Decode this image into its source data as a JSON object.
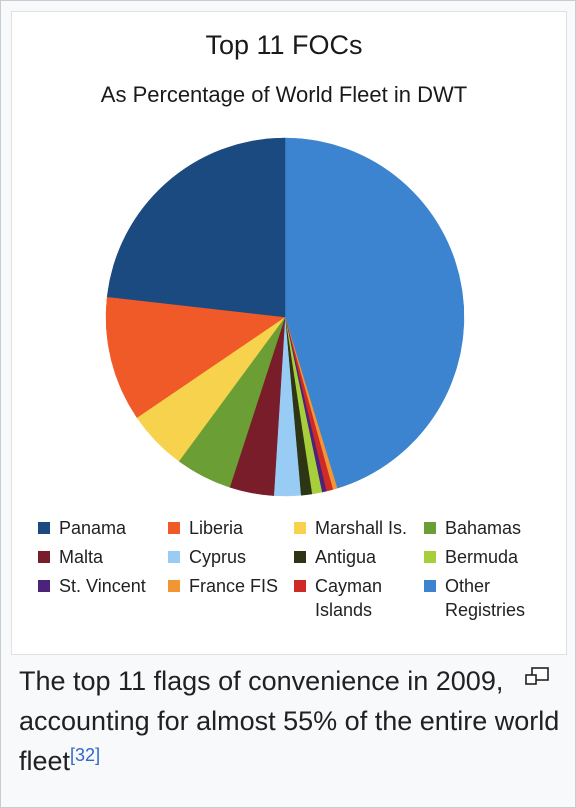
{
  "chart_data": {
    "type": "pie",
    "title": "Top 11 FOCs",
    "subtitle": "As Percentage of World Fleet in DWT",
    "slices": [
      {
        "label": "Other Registries",
        "value": 45.3,
        "color": "#3c84cf"
      },
      {
        "label": "France FIS",
        "value": 0.4,
        "color": "#f19632"
      },
      {
        "label": "Cayman Islands",
        "value": 0.6,
        "color": "#d02a26"
      },
      {
        "label": "St. Vincent",
        "value": 0.4,
        "color": "#4b237a"
      },
      {
        "label": "Bermuda",
        "value": 0.9,
        "color": "#a7cf3b"
      },
      {
        "label": "Antigua",
        "value": 1.0,
        "color": "#2d3515"
      },
      {
        "label": "Cyprus",
        "value": 2.4,
        "color": "#99ccf5"
      },
      {
        "label": "Malta",
        "value": 4.0,
        "color": "#7a1d2a"
      },
      {
        "label": "Bahamas",
        "value": 5.1,
        "color": "#6b9e35"
      },
      {
        "label": "Marshall Is.",
        "value": 5.4,
        "color": "#f7d24c"
      },
      {
        "label": "Liberia",
        "value": 11.3,
        "color": "#ef5a28"
      },
      {
        "label": "Panama",
        "value": 23.2,
        "color": "#1b4a80"
      }
    ]
  },
  "legend": [
    {
      "label": "Panama",
      "color": "#1b4a80"
    },
    {
      "label": "Liberia",
      "color": "#ef5a28"
    },
    {
      "label": "Marshall Is.",
      "color": "#f7d24c"
    },
    {
      "label": "Bahamas",
      "color": "#6b9e35"
    },
    {
      "label": "Malta",
      "color": "#7a1d2a"
    },
    {
      "label": "Cyprus",
      "color": "#99ccf5"
    },
    {
      "label": "Antigua",
      "color": "#2d3515"
    },
    {
      "label": "Bermuda",
      "color": "#a7cf3b"
    },
    {
      "label": "St. Vincent",
      "color": "#4b237a"
    },
    {
      "label": "France FIS",
      "color": "#f19632"
    },
    {
      "label": "Cayman\nIslands",
      "color": "#d02a26"
    },
    {
      "label": "Other\nRegistries",
      "color": "#3c84cf"
    }
  ],
  "caption": {
    "text": "The top 11 flags of convenience in 2009, accounting for almost 55% of the entire world fleet",
    "reference": "[32]"
  },
  "icons": {
    "enlarge": "magnify-icon"
  }
}
